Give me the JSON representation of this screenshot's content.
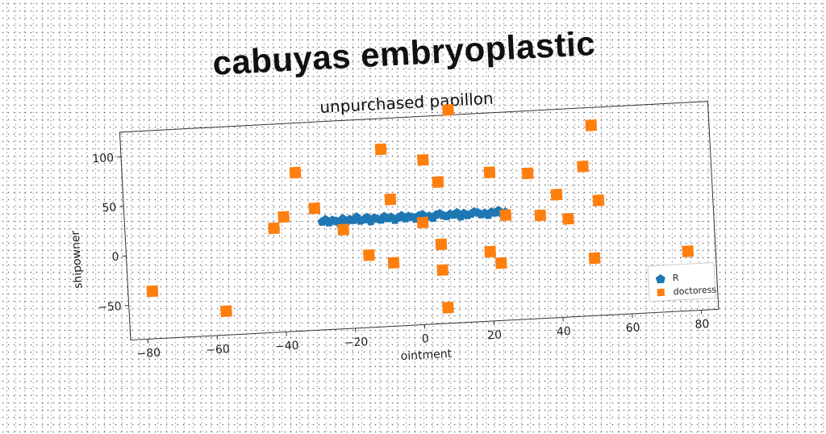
{
  "chart_data": {
    "type": "scatter",
    "title": "cabuyas embryoplastic",
    "subtitle": "unpurchased papillon",
    "xlabel": "ointment",
    "ylabel": "shipowner",
    "xlim": [
      -85,
      85
    ],
    "ylim": [
      -85,
      125
    ],
    "xticks": [
      -80,
      -60,
      -40,
      -20,
      0,
      20,
      40,
      60,
      80
    ],
    "yticks": [
      100,
      50,
      0,
      -50
    ],
    "grid": false,
    "legend_position": "lower right",
    "series": [
      {
        "name": "R",
        "marker": "pentagon",
        "color": "#1f77b4",
        "x": [
          -28,
          -27,
          -26,
          -25,
          -24,
          -23,
          -22,
          -21,
          -20,
          -19,
          -18,
          -17,
          -16,
          -15,
          -14,
          -13,
          -12,
          -11,
          -10,
          -9,
          -8,
          -7,
          -6,
          -5,
          -4,
          -3,
          -2,
          -1,
          0,
          1,
          2,
          3,
          4,
          5,
          6,
          7,
          8,
          9,
          10,
          11,
          12,
          13,
          14,
          15,
          16,
          17,
          18,
          19,
          20,
          21,
          22,
          23,
          24,
          25
        ],
        "y": [
          24,
          26,
          23,
          25,
          24,
          22,
          26,
          23,
          25,
          24,
          27,
          23,
          24,
          26,
          22,
          25,
          24,
          23,
          26,
          24,
          25,
          22,
          24,
          26,
          23,
          25,
          24,
          22,
          25,
          26,
          23,
          24,
          22,
          25,
          26,
          24,
          23,
          25,
          24,
          26,
          22,
          25,
          23,
          24,
          26,
          25,
          23,
          24,
          22,
          25,
          24,
          26,
          23,
          24
        ]
      },
      {
        "name": "doctoress",
        "marker": "square",
        "color": "#ff7f0e",
        "x": [
          10,
          51,
          -10,
          2,
          -35,
          6,
          21,
          32,
          48,
          -8,
          -39,
          -30,
          -42,
          -22,
          1,
          40,
          52,
          25,
          35,
          43,
          6,
          -15,
          20,
          -8,
          23,
          6,
          50,
          77,
          -78,
          -57,
          7
        ],
        "y": [
          130,
          107,
          94,
          81,
          75,
          58,
          65,
          62,
          66,
          43,
          31,
          38,
          20,
          15,
          18,
          39,
          31,
          21,
          19,
          14,
          -5,
          -12,
          -15,
          -21,
          -27,
          -31,
          -27,
          -25,
          -37,
          -61,
          -69
        ]
      }
    ]
  }
}
